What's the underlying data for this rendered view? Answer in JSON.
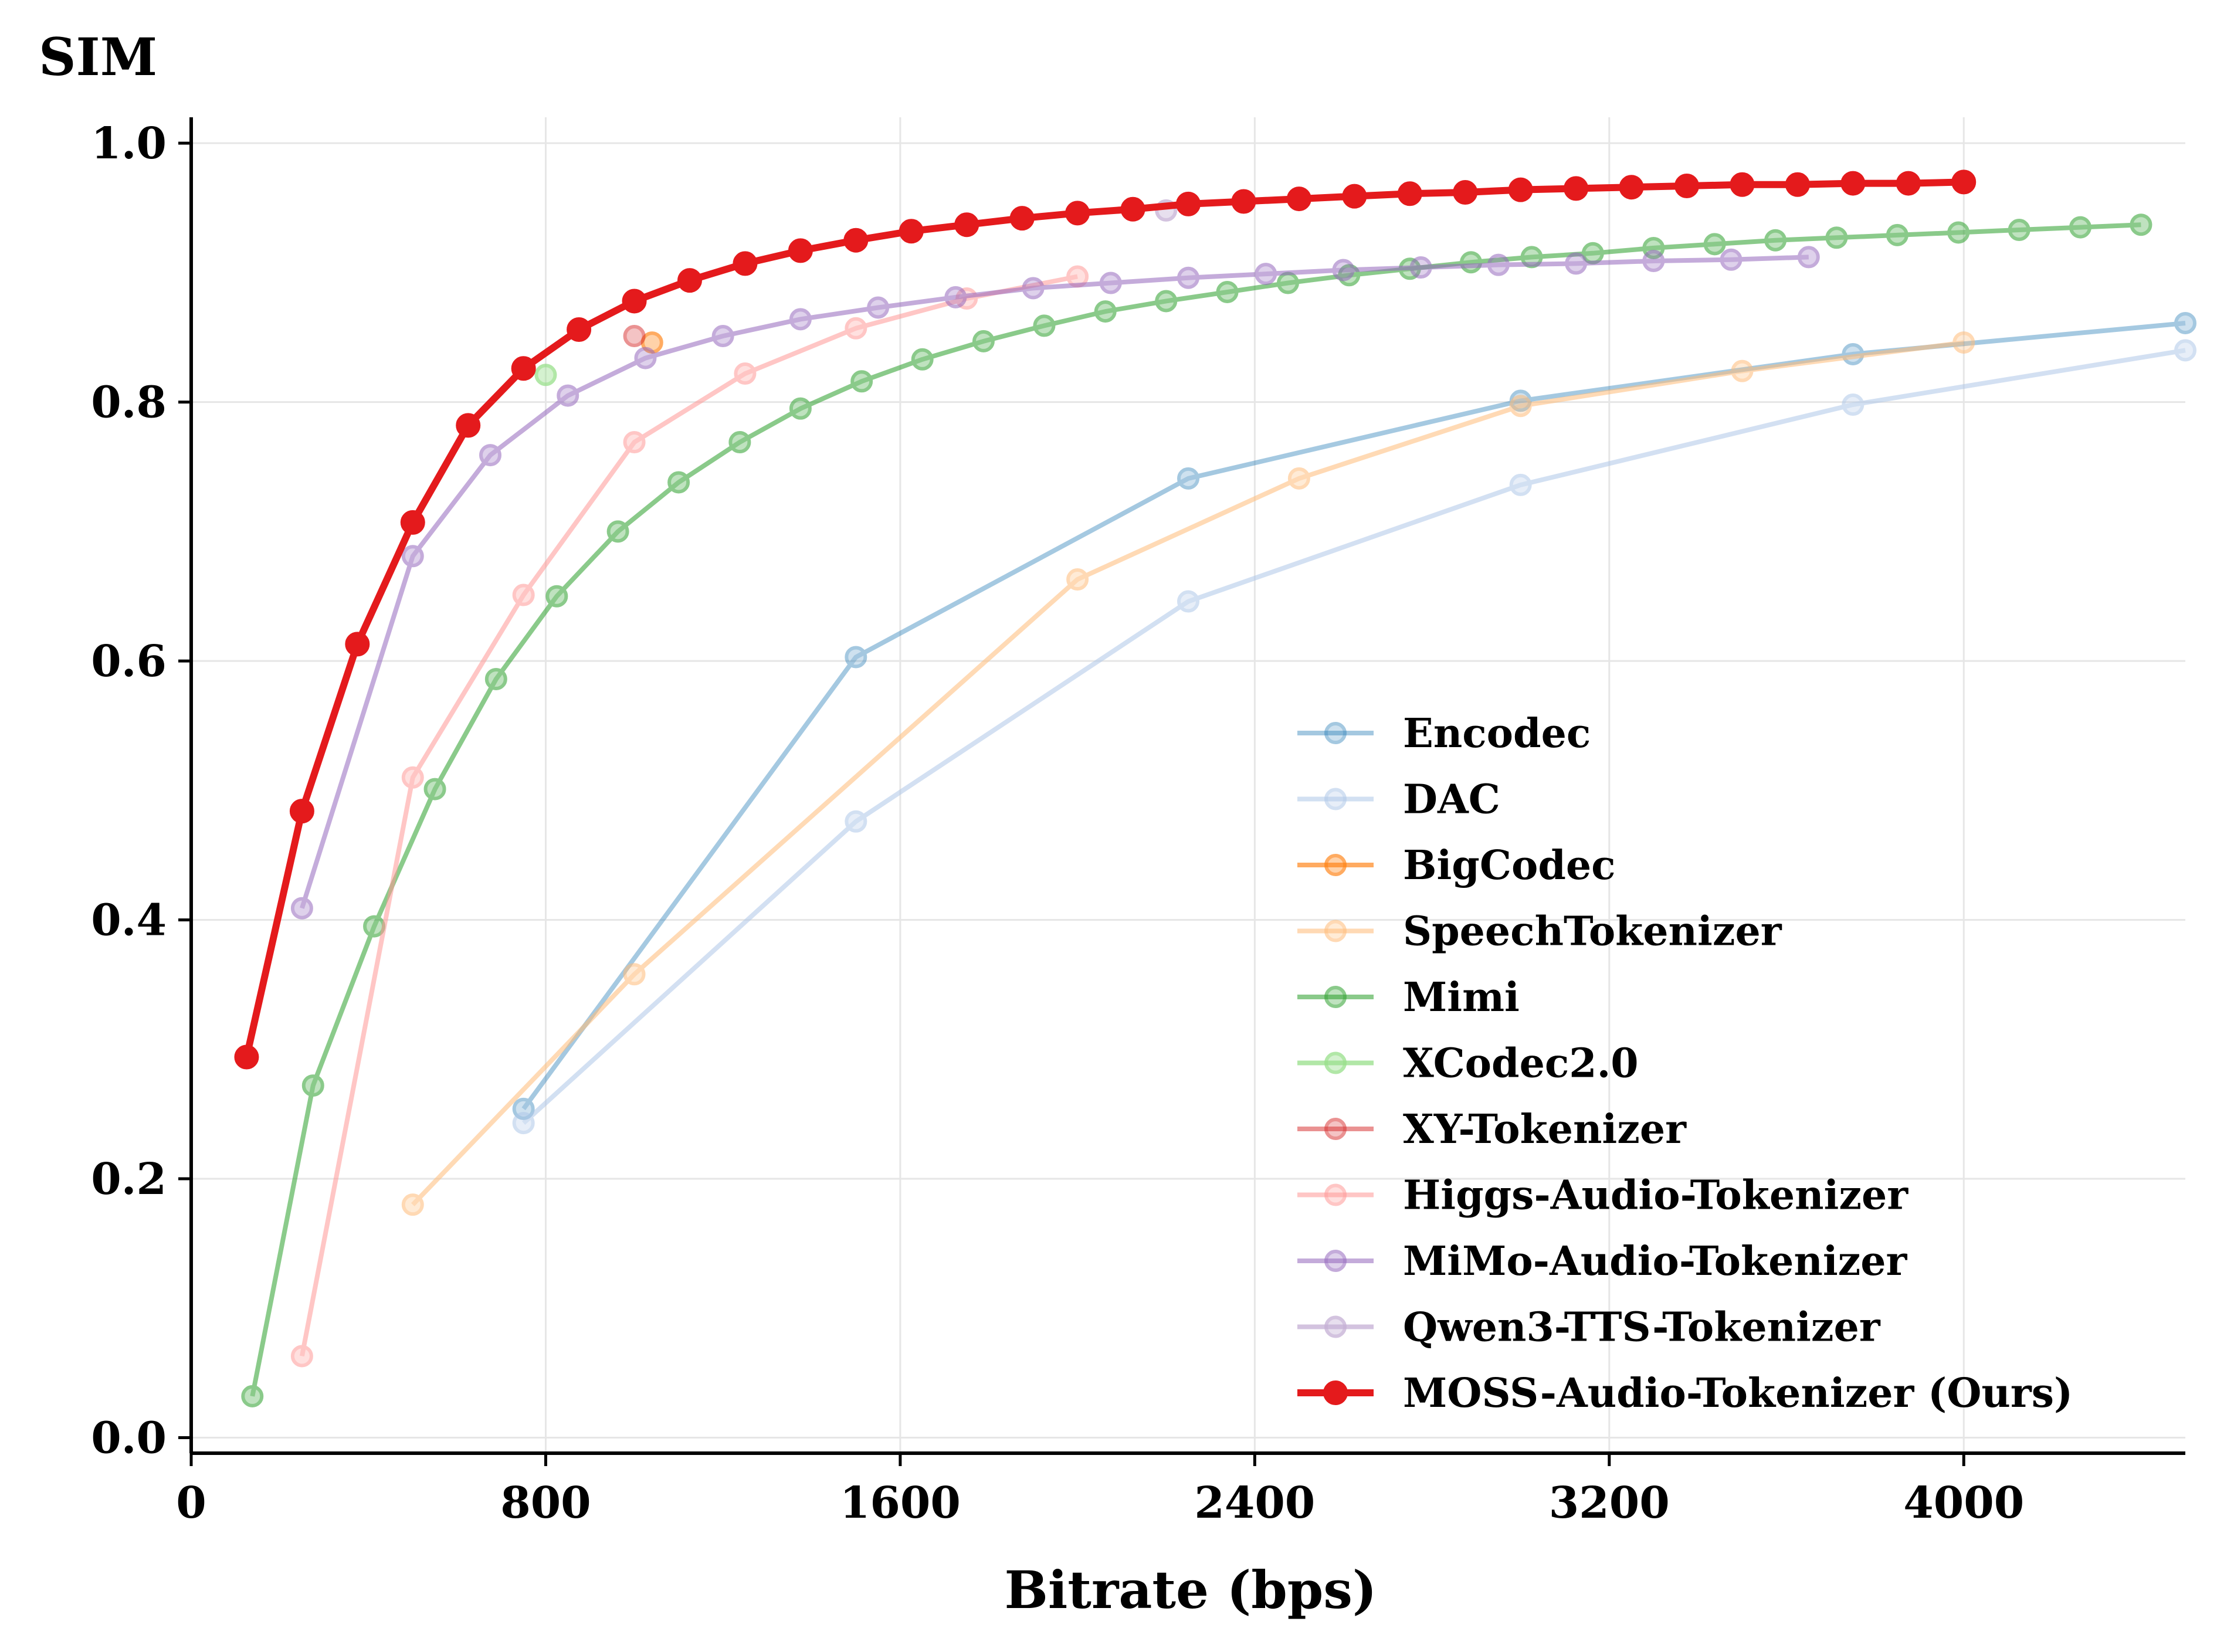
{
  "chart_data": {
    "type": "line",
    "title": "",
    "xlabel": "Bitrate (bps)",
    "ylabel": "SIM",
    "xlim": [
      0,
      4500
    ],
    "ylim": [
      -0.012,
      1.02
    ],
    "x_ticks": [
      "0",
      "800",
      "1600",
      "2400",
      "3200",
      "4000"
    ],
    "x_tick_values": [
      0,
      800,
      1600,
      2400,
      3200,
      4000
    ],
    "y_ticks": [
      "0.0",
      "0.2",
      "0.4",
      "0.6",
      "0.8",
      "1.0"
    ],
    "y_tick_values": [
      0.0,
      0.2,
      0.4,
      0.6,
      0.8,
      1.0
    ],
    "grid": true,
    "legend_position": "lower-right",
    "series": [
      {
        "name": "Encodec",
        "color": "#1f77b4",
        "alpha": 0.4,
        "points": [
          [
            750,
            0.254
          ],
          [
            1500,
            0.603
          ],
          [
            2250,
            0.741
          ],
          [
            3000,
            0.801
          ],
          [
            3750,
            0.837
          ],
          [
            4500,
            0.861
          ]
        ]
      },
      {
        "name": "DAC",
        "color": "#aec7e8",
        "alpha": 0.55,
        "points": [
          [
            750,
            0.243
          ],
          [
            1500,
            0.476
          ],
          [
            2250,
            0.646
          ],
          [
            3000,
            0.736
          ],
          [
            3750,
            0.798
          ],
          [
            4500,
            0.84
          ]
        ]
      },
      {
        "name": "BigCodec",
        "color": "#ff7f0e",
        "alpha": 0.65,
        "points": [
          [
            1040,
            0.846
          ]
        ]
      },
      {
        "name": "SpeechTokenizer",
        "color": "#ffbb78",
        "alpha": 0.55,
        "points": [
          [
            500,
            0.18
          ],
          [
            1000,
            0.358
          ],
          [
            2000,
            0.663
          ],
          [
            2500,
            0.741
          ],
          [
            3000,
            0.797
          ],
          [
            3500,
            0.824
          ],
          [
            4000,
            0.846
          ]
        ]
      },
      {
        "name": "Mimi",
        "color": "#2ca02c",
        "alpha": 0.55,
        "points": [
          [
            138,
            0.032
          ],
          [
            275,
            0.272
          ],
          [
            413,
            0.395
          ],
          [
            550,
            0.501
          ],
          [
            688,
            0.586
          ],
          [
            825,
            0.65
          ],
          [
            963,
            0.7
          ],
          [
            1100,
            0.738
          ],
          [
            1238,
            0.769
          ],
          [
            1375,
            0.795
          ],
          [
            1513,
            0.816
          ],
          [
            1650,
            0.833
          ],
          [
            1788,
            0.847
          ],
          [
            1925,
            0.859
          ],
          [
            2063,
            0.87
          ],
          [
            2200,
            0.878
          ],
          [
            2338,
            0.885
          ],
          [
            2475,
            0.892
          ],
          [
            2613,
            0.898
          ],
          [
            2750,
            0.903
          ],
          [
            2888,
            0.908
          ],
          [
            3025,
            0.912
          ],
          [
            3163,
            0.915
          ],
          [
            3300,
            0.919
          ],
          [
            3438,
            0.922
          ],
          [
            3575,
            0.925
          ],
          [
            3713,
            0.927
          ],
          [
            3850,
            0.929
          ],
          [
            3988,
            0.931
          ],
          [
            4125,
            0.933
          ],
          [
            4263,
            0.935
          ],
          [
            4400,
            0.937
          ]
        ]
      },
      {
        "name": "XCodec2.0",
        "color": "#98df8a",
        "alpha": 0.75,
        "points": [
          [
            800,
            0.821
          ]
        ]
      },
      {
        "name": "XY-Tokenizer",
        "color": "#d62728",
        "alpha": 0.5,
        "points": [
          [
            1000,
            0.851
          ]
        ]
      },
      {
        "name": "Higgs-Audio-Tokenizer",
        "color": "#ff9896",
        "alpha": 0.55,
        "points": [
          [
            250,
            0.063
          ],
          [
            500,
            0.51
          ],
          [
            750,
            0.651
          ],
          [
            1000,
            0.769
          ],
          [
            1250,
            0.822
          ],
          [
            1500,
            0.857
          ],
          [
            1750,
            0.88
          ],
          [
            2000,
            0.897
          ]
        ]
      },
      {
        "name": "MiMo-Audio-Tokenizer",
        "color": "#9467bd",
        "alpha": 0.55,
        "points": [
          [
            250,
            0.409
          ],
          [
            500,
            0.681
          ],
          [
            675,
            0.759
          ],
          [
            850,
            0.805
          ],
          [
            1025,
            0.834
          ],
          [
            1200,
            0.851
          ],
          [
            1375,
            0.864
          ],
          [
            1550,
            0.873
          ],
          [
            1725,
            0.881
          ],
          [
            1900,
            0.888
          ],
          [
            2075,
            0.892
          ],
          [
            2250,
            0.896
          ],
          [
            2425,
            0.899
          ],
          [
            2600,
            0.902
          ],
          [
            2775,
            0.904
          ],
          [
            2950,
            0.906
          ],
          [
            3125,
            0.907
          ],
          [
            3300,
            0.909
          ],
          [
            3475,
            0.91
          ],
          [
            3650,
            0.912
          ]
        ]
      },
      {
        "name": "Qwen3-TTS-Tokenizer",
        "color": "#c5b0d5",
        "alpha": 0.75,
        "points": [
          [
            2200,
            0.948
          ]
        ]
      },
      {
        "name": "MOSS-Audio-Tokenizer (Ours)",
        "color": "#e41a1c",
        "alpha": 1.0,
        "bold": true,
        "points": [
          [
            125,
            0.294
          ],
          [
            250,
            0.484
          ],
          [
            375,
            0.613
          ],
          [
            500,
            0.707
          ],
          [
            625,
            0.782
          ],
          [
            750,
            0.826
          ],
          [
            875,
            0.856
          ],
          [
            1000,
            0.878
          ],
          [
            1125,
            0.894
          ],
          [
            1250,
            0.907
          ],
          [
            1375,
            0.917
          ],
          [
            1500,
            0.925
          ],
          [
            1625,
            0.932
          ],
          [
            1750,
            0.937
          ],
          [
            1875,
            0.942
          ],
          [
            2000,
            0.946
          ],
          [
            2125,
            0.949
          ],
          [
            2250,
            0.953
          ],
          [
            2375,
            0.955
          ],
          [
            2500,
            0.957
          ],
          [
            2625,
            0.959
          ],
          [
            2750,
            0.961
          ],
          [
            2875,
            0.962
          ],
          [
            3000,
            0.964
          ],
          [
            3125,
            0.965
          ],
          [
            3250,
            0.966
          ],
          [
            3375,
            0.967
          ],
          [
            3500,
            0.968
          ],
          [
            3625,
            0.968
          ],
          [
            3750,
            0.969
          ],
          [
            3875,
            0.969
          ],
          [
            4000,
            0.97
          ]
        ]
      }
    ]
  }
}
